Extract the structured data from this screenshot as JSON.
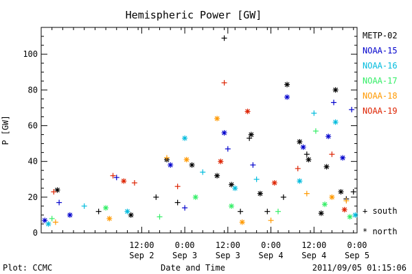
{
  "chart_data": {
    "type": "scatter",
    "title": "Hemispheric Power [GW]",
    "ylabel": "P [GW]",
    "xlabel": "Date and Time",
    "ylim": [
      0,
      115
    ],
    "yticks": [
      0,
      20,
      40,
      60,
      80,
      100
    ],
    "xlim": [
      "2011-09-01 08:00",
      "2011-09-05 00:00"
    ],
    "xticks": [
      {
        "time": "2011-09-02 12:00",
        "hour": "12:00",
        "date": "Sep 2"
      },
      {
        "time": "2011-09-03 00:00",
        "hour": "0:00",
        "date": "Sep 3"
      },
      {
        "time": "2011-09-03 12:00",
        "hour": "12:00",
        "date": "Sep 3"
      },
      {
        "time": "2011-09-04 00:00",
        "hour": "0:00",
        "date": "Sep 4"
      },
      {
        "time": "2011-09-04 12:00",
        "hour": "12:00",
        "date": "Sep 4"
      },
      {
        "time": "2011-09-05 00:00",
        "hour": "0:00",
        "date": "Sep 5"
      }
    ],
    "legend_position": "right",
    "series": [
      {
        "name": "METP-02",
        "color": "#000000",
        "points": [
          {
            "x": "2011-09-01 12:30",
            "y": 24,
            "hemi": "north"
          },
          {
            "x": "2011-09-02 00:00",
            "y": 12,
            "hemi": "south"
          },
          {
            "x": "2011-09-02 09:00",
            "y": 10,
            "hemi": "north"
          },
          {
            "x": "2011-09-02 16:00",
            "y": 20,
            "hemi": "south"
          },
          {
            "x": "2011-09-02 19:00",
            "y": 41,
            "hemi": "north"
          },
          {
            "x": "2011-09-02 22:00",
            "y": 17,
            "hemi": "south"
          },
          {
            "x": "2011-09-03 02:00",
            "y": 38,
            "hemi": "north"
          },
          {
            "x": "2011-09-03 09:00",
            "y": 32,
            "hemi": "north"
          },
          {
            "x": "2011-09-03 11:00",
            "y": 109,
            "hemi": "south"
          },
          {
            "x": "2011-09-03 13:00",
            "y": 27,
            "hemi": "north"
          },
          {
            "x": "2011-09-03 15:30",
            "y": 12,
            "hemi": "south"
          },
          {
            "x": "2011-09-03 18:00",
            "y": 53,
            "hemi": "south"
          },
          {
            "x": "2011-09-03 18:30",
            "y": 55,
            "hemi": "north"
          },
          {
            "x": "2011-09-03 21:00",
            "y": 22,
            "hemi": "north"
          },
          {
            "x": "2011-09-03 23:00",
            "y": 12,
            "hemi": "south"
          },
          {
            "x": "2011-09-04 03:30",
            "y": 20,
            "hemi": "south"
          },
          {
            "x": "2011-09-04 04:30",
            "y": 83,
            "hemi": "north"
          },
          {
            "x": "2011-09-04 08:00",
            "y": 51,
            "hemi": "north"
          },
          {
            "x": "2011-09-04 10:00",
            "y": 44,
            "hemi": "south"
          },
          {
            "x": "2011-09-04 10:30",
            "y": 41,
            "hemi": "north"
          },
          {
            "x": "2011-09-04 14:00",
            "y": 11,
            "hemi": "north"
          },
          {
            "x": "2011-09-04 15:30",
            "y": 37,
            "hemi": "north"
          },
          {
            "x": "2011-09-04 18:00",
            "y": 80,
            "hemi": "north"
          },
          {
            "x": "2011-09-04 19:30",
            "y": 23,
            "hemi": "north"
          },
          {
            "x": "2011-09-04 21:00",
            "y": 19,
            "hemi": "south"
          },
          {
            "x": "2011-09-04 23:00",
            "y": 23,
            "hemi": "south"
          }
        ]
      },
      {
        "name": "NOAA-15",
        "color": "#0000cc",
        "points": [
          {
            "x": "2011-09-01 09:00",
            "y": 7,
            "hemi": "north"
          },
          {
            "x": "2011-09-01 13:00",
            "y": 17,
            "hemi": "south"
          },
          {
            "x": "2011-09-01 16:00",
            "y": 10,
            "hemi": "north"
          },
          {
            "x": "2011-09-02 05:00",
            "y": 31,
            "hemi": "south"
          },
          {
            "x": "2011-09-02 20:00",
            "y": 38,
            "hemi": "north"
          },
          {
            "x": "2011-09-03 00:00",
            "y": 14,
            "hemi": "south"
          },
          {
            "x": "2011-09-03 11:00",
            "y": 56,
            "hemi": "north"
          },
          {
            "x": "2011-09-03 12:00",
            "y": 47,
            "hemi": "south"
          },
          {
            "x": "2011-09-03 19:00",
            "y": 38,
            "hemi": "south"
          },
          {
            "x": "2011-09-04 04:30",
            "y": 76,
            "hemi": "north"
          },
          {
            "x": "2011-09-04 09:00",
            "y": 48,
            "hemi": "north"
          },
          {
            "x": "2011-09-04 16:00",
            "y": 54,
            "hemi": "north"
          },
          {
            "x": "2011-09-04 17:30",
            "y": 73,
            "hemi": "south"
          },
          {
            "x": "2011-09-04 20:00",
            "y": 42,
            "hemi": "north"
          },
          {
            "x": "2011-09-04 22:30",
            "y": 69,
            "hemi": "south"
          }
        ]
      },
      {
        "name": "NOAA-16",
        "color": "#00bbdd",
        "points": [
          {
            "x": "2011-09-01 10:00",
            "y": 5,
            "hemi": "north"
          },
          {
            "x": "2011-09-01 20:00",
            "y": 15,
            "hemi": "south"
          },
          {
            "x": "2011-09-02 08:00",
            "y": 12,
            "hemi": "north"
          },
          {
            "x": "2011-09-03 00:00",
            "y": 53,
            "hemi": "north"
          },
          {
            "x": "2011-09-03 05:00",
            "y": 34,
            "hemi": "south"
          },
          {
            "x": "2011-09-03 14:00",
            "y": 25,
            "hemi": "north"
          },
          {
            "x": "2011-09-03 20:00",
            "y": 30,
            "hemi": "south"
          },
          {
            "x": "2011-09-04 08:00",
            "y": 29,
            "hemi": "north"
          },
          {
            "x": "2011-09-04 12:00",
            "y": 67,
            "hemi": "south"
          },
          {
            "x": "2011-09-04 18:00",
            "y": 62,
            "hemi": "north"
          },
          {
            "x": "2011-09-04 23:30",
            "y": 10,
            "hemi": "north"
          }
        ]
      },
      {
        "name": "NOAA-17",
        "color": "#33ee66",
        "points": [
          {
            "x": "2011-09-01 11:00",
            "y": 8,
            "hemi": "south"
          },
          {
            "x": "2011-09-02 02:00",
            "y": 14,
            "hemi": "north"
          },
          {
            "x": "2011-09-02 17:00",
            "y": 9,
            "hemi": "south"
          },
          {
            "x": "2011-09-03 03:00",
            "y": 20,
            "hemi": "north"
          },
          {
            "x": "2011-09-03 13:00",
            "y": 15,
            "hemi": "north"
          },
          {
            "x": "2011-09-04 02:00",
            "y": 12,
            "hemi": "south"
          },
          {
            "x": "2011-09-04 12:30",
            "y": 57,
            "hemi": "south"
          },
          {
            "x": "2011-09-04 15:00",
            "y": 16,
            "hemi": "north"
          },
          {
            "x": "2011-09-04 22:00",
            "y": 9,
            "hemi": "north"
          }
        ]
      },
      {
        "name": "NOAA-18",
        "color": "#ff9900",
        "points": [
          {
            "x": "2011-09-01 12:00",
            "y": 6,
            "hemi": "south"
          },
          {
            "x": "2011-09-02 03:00",
            "y": 8,
            "hemi": "north"
          },
          {
            "x": "2011-09-02 19:00",
            "y": 42,
            "hemi": "south"
          },
          {
            "x": "2011-09-03 00:30",
            "y": 41,
            "hemi": "north"
          },
          {
            "x": "2011-09-03 09:00",
            "y": 64,
            "hemi": "north"
          },
          {
            "x": "2011-09-03 16:00",
            "y": 6,
            "hemi": "north"
          },
          {
            "x": "2011-09-04 00:00",
            "y": 7,
            "hemi": "south"
          },
          {
            "x": "2011-09-04 10:00",
            "y": 22,
            "hemi": "south"
          },
          {
            "x": "2011-09-04 17:00",
            "y": 20,
            "hemi": "north"
          },
          {
            "x": "2011-09-04 21:00",
            "y": 18,
            "hemi": "south"
          }
        ]
      },
      {
        "name": "NOAA-19",
        "color": "#dd2200",
        "points": [
          {
            "x": "2011-09-01 11:30",
            "y": 23,
            "hemi": "south"
          },
          {
            "x": "2011-09-02 04:00",
            "y": 32,
            "hemi": "south"
          },
          {
            "x": "2011-09-02 07:00",
            "y": 29,
            "hemi": "north"
          },
          {
            "x": "2011-09-02 10:00",
            "y": 28,
            "hemi": "south"
          },
          {
            "x": "2011-09-02 22:00",
            "y": 26,
            "hemi": "south"
          },
          {
            "x": "2011-09-03 10:00",
            "y": 40,
            "hemi": "north"
          },
          {
            "x": "2011-09-03 11:00",
            "y": 84,
            "hemi": "south"
          },
          {
            "x": "2011-09-03 17:30",
            "y": 68,
            "hemi": "north"
          },
          {
            "x": "2011-09-04 01:00",
            "y": 28,
            "hemi": "north"
          },
          {
            "x": "2011-09-04 07:30",
            "y": 36,
            "hemi": "south"
          },
          {
            "x": "2011-09-04 17:00",
            "y": 44,
            "hemi": "south"
          },
          {
            "x": "2011-09-04 20:30",
            "y": 13,
            "hemi": "north"
          }
        ]
      }
    ],
    "hemisphere_legend": [
      {
        "symbol": "+",
        "label": "south"
      },
      {
        "symbol": "*",
        "label": "north"
      }
    ]
  },
  "footer": {
    "plot_credit": "Plot: CCMC",
    "timestamp": "2011/09/05 01:15:06"
  }
}
